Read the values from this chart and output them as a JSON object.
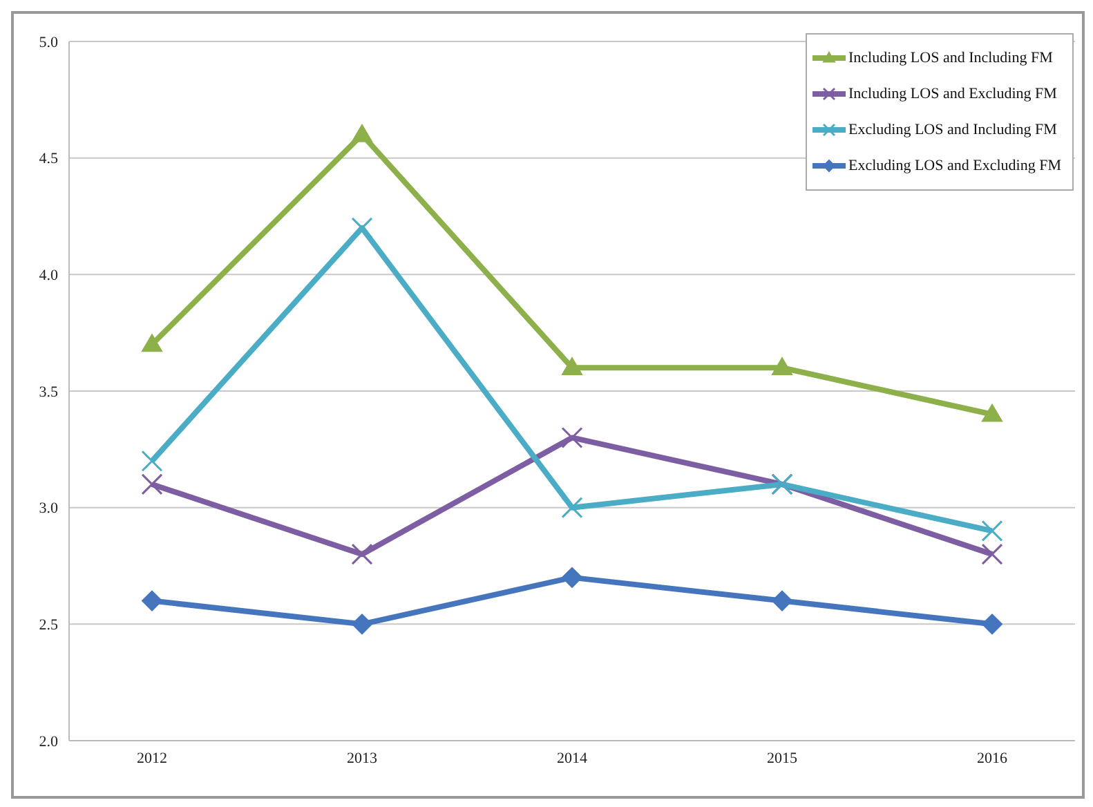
{
  "chart_data": {
    "type": "line",
    "categories": [
      "2012",
      "2013",
      "2014",
      "2015",
      "2016"
    ],
    "series": [
      {
        "name": "Including LOS and Including FM",
        "color": "#8db04a",
        "marker": "triangle",
        "values": [
          3.7,
          4.6,
          3.6,
          3.6,
          3.4
        ]
      },
      {
        "name": "Including LOS and Excluding FM",
        "color": "#7d5ea3",
        "marker": "cross",
        "values": [
          3.1,
          2.8,
          3.3,
          3.1,
          2.8
        ]
      },
      {
        "name": "Excluding LOS and Including FM",
        "color": "#4bacc6",
        "marker": "cross",
        "values": [
          3.2,
          4.2,
          3.0,
          3.1,
          2.9
        ]
      },
      {
        "name": "Excluding LOS and Excluding FM",
        "color": "#4475bd",
        "marker": "diamond",
        "values": [
          2.6,
          2.5,
          2.7,
          2.6,
          2.5
        ]
      }
    ],
    "ylim": [
      2,
      5
    ],
    "yticks": [
      {
        "value": 2,
        "label": "2.0"
      },
      {
        "value": 2.5,
        "label": "2.5"
      },
      {
        "value": 3,
        "label": "3.0"
      },
      {
        "value": 3.5,
        "label": "3.5"
      },
      {
        "value": 4,
        "label": "4.0"
      },
      {
        "value": 4.5,
        "label": "4.5"
      },
      {
        "value": 5,
        "label": "5.0"
      }
    ],
    "grid": "y",
    "legend": "top right",
    "line_style": "solid"
  }
}
